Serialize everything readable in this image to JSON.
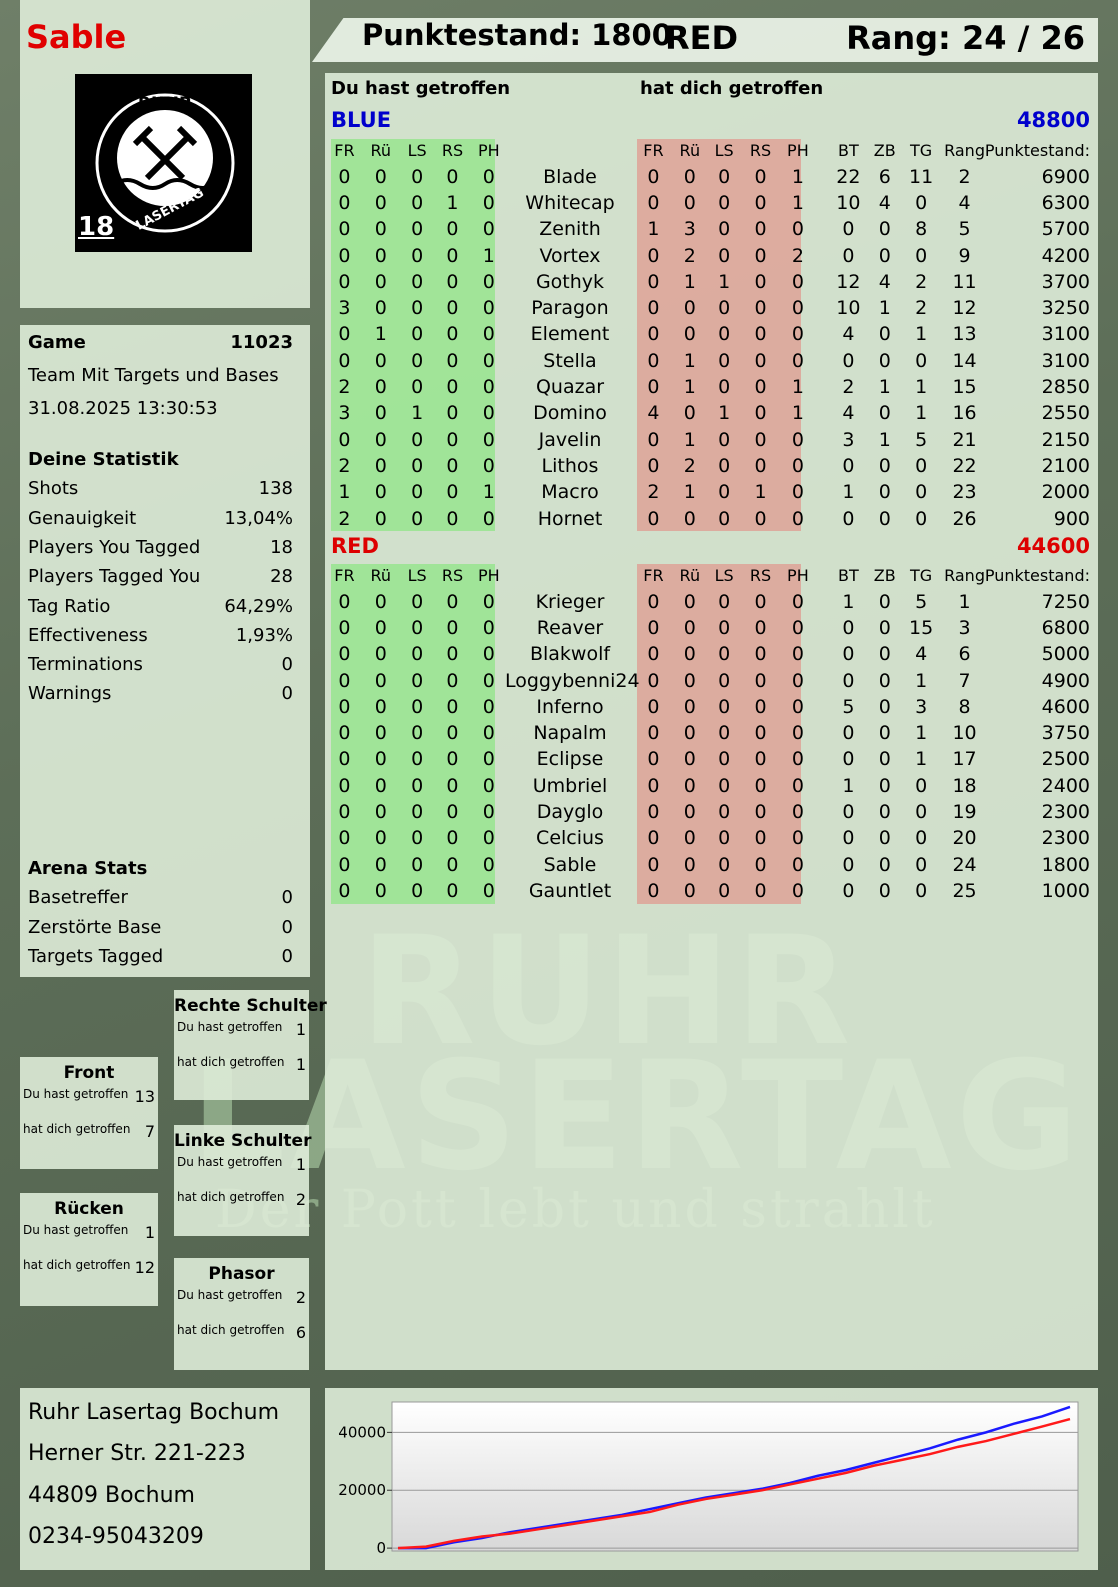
{
  "header": {
    "player": "Sable",
    "score": "Punktestand: 1800",
    "team": "RED",
    "rank": "Rang: 24 / 26"
  },
  "logo": {
    "top": "RUHR",
    "bottom": "LASERTAG",
    "age": "18"
  },
  "watermark": {
    "line1": "RUHR",
    "line2": "LASERTAG",
    "slogan": "Der Pott lebt und strahlt"
  },
  "game": {
    "label": "Game",
    "id": "11023",
    "mode": "Team Mit Targets und Bases",
    "date": "31.08.2025 13:30:53"
  },
  "stats": {
    "title": "Deine Statistik",
    "rows": [
      [
        "Shots",
        "138"
      ],
      [
        "Genauigkeit",
        "13,04%"
      ],
      [
        "Players You Tagged",
        "18"
      ],
      [
        "Players Tagged You",
        "28"
      ],
      [
        "Tag Ratio",
        "64,29%"
      ],
      [
        "Effectiveness",
        "1,93%"
      ],
      [
        "Terminations",
        "0"
      ],
      [
        "Warnings",
        "0"
      ]
    ]
  },
  "arena": {
    "title": "Arena Stats",
    "rows": [
      [
        "Basetreffer",
        "0"
      ],
      [
        "Zerstörte Base",
        "0"
      ],
      [
        "Targets Tagged",
        "0"
      ]
    ]
  },
  "zones": [
    {
      "title": "Rechte Schulter",
      "rows": [
        [
          "Du hast getroffen",
          "1"
        ],
        [
          "hat dich getroffen",
          "1"
        ]
      ]
    },
    {
      "title": "Front",
      "rows": [
        [
          "Du hast getroffen",
          "13"
        ],
        [
          "hat dich getroffen",
          "7"
        ]
      ]
    },
    {
      "title": "Linke Schulter",
      "rows": [
        [
          "Du hast getroffen",
          "1"
        ],
        [
          "hat dich getroffen",
          "2"
        ]
      ]
    },
    {
      "title": "Rücken",
      "rows": [
        [
          "Du hast getroffen",
          "1"
        ],
        [
          "hat dich getroffen",
          "12"
        ]
      ]
    },
    {
      "title": "Phasor",
      "rows": [
        [
          "Du hast getroffen",
          "2"
        ],
        [
          "hat dich getroffen",
          "6"
        ]
      ]
    }
  ],
  "address": [
    "Ruhr Lasertag Bochum",
    "Herner Str. 221-223",
    "44809 Bochum",
    "0234-95043209"
  ],
  "table": {
    "given_title": "Du hast getroffen",
    "received_title": "hat dich getroffen",
    "hit_columns": [
      "FR",
      "Rü",
      "LS",
      "RS",
      "PH"
    ],
    "stat_columns": [
      "BT",
      "ZB",
      "TG",
      "Rang",
      "Punktestand:"
    ],
    "teams": [
      {
        "name": "BLUE",
        "score": "48800",
        "color": "#0000cc",
        "players": [
          [
            "Blade",
            [
              0,
              0,
              0,
              0,
              0
            ],
            [
              0,
              0,
              0,
              0,
              1
            ],
            [
              22,
              6,
              11,
              2,
              6900
            ]
          ],
          [
            "Whitecap",
            [
              0,
              0,
              0,
              1,
              0
            ],
            [
              0,
              0,
              0,
              0,
              1
            ],
            [
              10,
              4,
              0,
              4,
              6300
            ]
          ],
          [
            "Zenith",
            [
              0,
              0,
              0,
              0,
              0
            ],
            [
              1,
              3,
              0,
              0,
              0
            ],
            [
              0,
              0,
              8,
              5,
              5700
            ]
          ],
          [
            "Vortex",
            [
              0,
              0,
              0,
              0,
              1
            ],
            [
              0,
              2,
              0,
              0,
              2
            ],
            [
              0,
              0,
              0,
              9,
              4200
            ]
          ],
          [
            "Gothyk",
            [
              0,
              0,
              0,
              0,
              0
            ],
            [
              0,
              1,
              1,
              0,
              0
            ],
            [
              12,
              4,
              2,
              11,
              3700
            ]
          ],
          [
            "Paragon",
            [
              3,
              0,
              0,
              0,
              0
            ],
            [
              0,
              0,
              0,
              0,
              0
            ],
            [
              10,
              1,
              2,
              12,
              3250
            ]
          ],
          [
            "Element",
            [
              0,
              1,
              0,
              0,
              0
            ],
            [
              0,
              0,
              0,
              0,
              0
            ],
            [
              4,
              0,
              1,
              13,
              3100
            ]
          ],
          [
            "Stella",
            [
              0,
              0,
              0,
              0,
              0
            ],
            [
              0,
              1,
              0,
              0,
              0
            ],
            [
              0,
              0,
              0,
              14,
              3100
            ]
          ],
          [
            "Quazar",
            [
              2,
              0,
              0,
              0,
              0
            ],
            [
              0,
              1,
              0,
              0,
              1
            ],
            [
              2,
              1,
              1,
              15,
              2850
            ]
          ],
          [
            "Domino",
            [
              3,
              0,
              1,
              0,
              0
            ],
            [
              4,
              0,
              1,
              0,
              1
            ],
            [
              4,
              0,
              1,
              16,
              2550
            ]
          ],
          [
            "Javelin",
            [
              0,
              0,
              0,
              0,
              0
            ],
            [
              0,
              1,
              0,
              0,
              0
            ],
            [
              3,
              1,
              5,
              21,
              2150
            ]
          ],
          [
            "Lithos",
            [
              2,
              0,
              0,
              0,
              0
            ],
            [
              0,
              2,
              0,
              0,
              0
            ],
            [
              0,
              0,
              0,
              22,
              2100
            ]
          ],
          [
            "Macro",
            [
              1,
              0,
              0,
              0,
              1
            ],
            [
              2,
              1,
              0,
              1,
              0
            ],
            [
              1,
              0,
              0,
              23,
              2000
            ]
          ],
          [
            "Hornet",
            [
              2,
              0,
              0,
              0,
              0
            ],
            [
              0,
              0,
              0,
              0,
              0
            ],
            [
              0,
              0,
              0,
              26,
              900
            ]
          ]
        ]
      },
      {
        "name": "RED",
        "score": "44600",
        "color": "#dd0000",
        "players": [
          [
            "Krieger",
            [
              0,
              0,
              0,
              0,
              0
            ],
            [
              0,
              0,
              0,
              0,
              0
            ],
            [
              1,
              0,
              5,
              1,
              7250
            ]
          ],
          [
            "Reaver",
            [
              0,
              0,
              0,
              0,
              0
            ],
            [
              0,
              0,
              0,
              0,
              0
            ],
            [
              0,
              0,
              15,
              3,
              6800
            ]
          ],
          [
            "Blakwolf",
            [
              0,
              0,
              0,
              0,
              0
            ],
            [
              0,
              0,
              0,
              0,
              0
            ],
            [
              0,
              0,
              4,
              6,
              5000
            ]
          ],
          [
            "Loggybenni24",
            [
              0,
              0,
              0,
              0,
              0
            ],
            [
              0,
              0,
              0,
              0,
              0
            ],
            [
              0,
              0,
              1,
              7,
              4900
            ]
          ],
          [
            "Inferno",
            [
              0,
              0,
              0,
              0,
              0
            ],
            [
              0,
              0,
              0,
              0,
              0
            ],
            [
              5,
              0,
              3,
              8,
              4600
            ]
          ],
          [
            "Napalm",
            [
              0,
              0,
              0,
              0,
              0
            ],
            [
              0,
              0,
              0,
              0,
              0
            ],
            [
              0,
              0,
              1,
              10,
              3750
            ]
          ],
          [
            "Eclipse",
            [
              0,
              0,
              0,
              0,
              0
            ],
            [
              0,
              0,
              0,
              0,
              0
            ],
            [
              0,
              0,
              1,
              17,
              2500
            ]
          ],
          [
            "Umbriel",
            [
              0,
              0,
              0,
              0,
              0
            ],
            [
              0,
              0,
              0,
              0,
              0
            ],
            [
              1,
              0,
              0,
              18,
              2400
            ]
          ],
          [
            "Dayglo",
            [
              0,
              0,
              0,
              0,
              0
            ],
            [
              0,
              0,
              0,
              0,
              0
            ],
            [
              0,
              0,
              0,
              19,
              2300
            ]
          ],
          [
            "Celcius",
            [
              0,
              0,
              0,
              0,
              0
            ],
            [
              0,
              0,
              0,
              0,
              0
            ],
            [
              0,
              0,
              0,
              20,
              2300
            ]
          ],
          [
            "Sable",
            [
              0,
              0,
              0,
              0,
              0
            ],
            [
              0,
              0,
              0,
              0,
              0
            ],
            [
              0,
              0,
              0,
              24,
              1800
            ]
          ],
          [
            "Gauntlet",
            [
              0,
              0,
              0,
              0,
              0
            ],
            [
              0,
              0,
              0,
              0,
              0
            ],
            [
              0,
              0,
              0,
              25,
              1000
            ]
          ]
        ]
      }
    ]
  },
  "chart_data": {
    "type": "line",
    "ylim": [
      -1000,
      50500
    ],
    "yticks": [
      0,
      20000,
      40000
    ],
    "grid": true,
    "series": [
      {
        "name": "BLUE",
        "color": "#1a1aff",
        "values": [
          0,
          0,
          2000,
          3500,
          5500,
          7000,
          8500,
          10000,
          11500,
          13500,
          15500,
          17500,
          19000,
          20500,
          22500,
          25000,
          27000,
          29500,
          32000,
          34500,
          37500,
          40000,
          43000,
          45500,
          48800
        ]
      },
      {
        "name": "RED",
        "color": "#ff1a1a",
        "values": [
          0,
          500,
          2500,
          4000,
          5000,
          6500,
          8000,
          9500,
          11000,
          12500,
          15000,
          17000,
          18500,
          20000,
          22000,
          24000,
          26000,
          28500,
          30500,
          32500,
          35000,
          37000,
          39500,
          42000,
          44600
        ]
      }
    ]
  }
}
